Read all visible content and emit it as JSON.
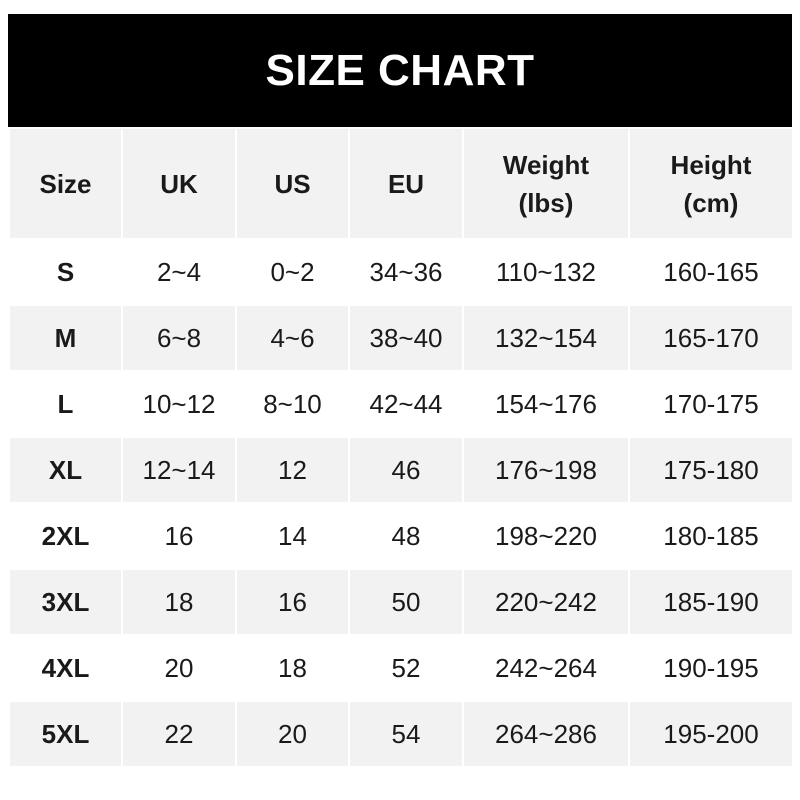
{
  "title": "SIZE CHART",
  "headers": [
    {
      "line1": "Size",
      "line2": ""
    },
    {
      "line1": "UK",
      "line2": ""
    },
    {
      "line1": "US",
      "line2": ""
    },
    {
      "line1": "EU",
      "line2": ""
    },
    {
      "line1": "Weight",
      "line2": "(lbs)"
    },
    {
      "line1": "Height",
      "line2": "(cm)"
    }
  ],
  "rows": [
    [
      "S",
      "2~4",
      "0~2",
      "34~36",
      "110~132",
      "160-165"
    ],
    [
      "M",
      "6~8",
      "4~6",
      "38~40",
      "132~154",
      "165-170"
    ],
    [
      "L",
      "10~12",
      "8~10",
      "42~44",
      "154~176",
      "170-175"
    ],
    [
      "XL",
      "12~14",
      "12",
      "46",
      "176~198",
      "175-180"
    ],
    [
      "2XL",
      "16",
      "14",
      "48",
      "198~220",
      "180-185"
    ],
    [
      "3XL",
      "18",
      "16",
      "50",
      "220~242",
      "185-190"
    ],
    [
      "4XL",
      "20",
      "18",
      "52",
      "242~264",
      "190-195"
    ],
    [
      "5XL",
      "22",
      "20",
      "54",
      "264~286",
      "195-200"
    ]
  ],
  "colors": {
    "title_bg": "#000000",
    "stripe": "#f2f2f2"
  }
}
